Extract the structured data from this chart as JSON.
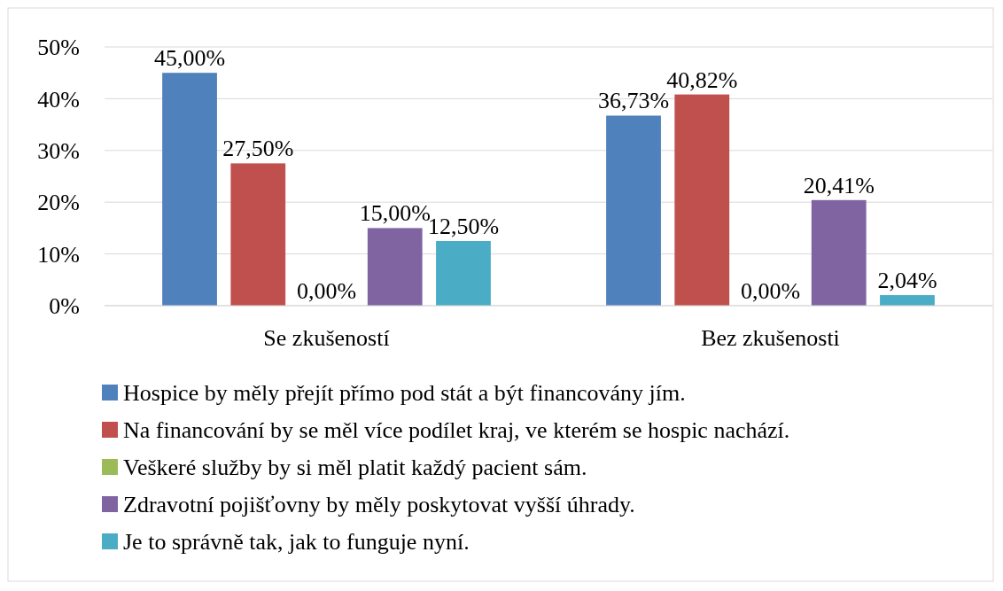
{
  "chart_data": {
    "type": "bar",
    "categories": [
      "Se zkušeností",
      "Bez zkušenosti"
    ],
    "series": [
      {
        "name": "Hospice by měly přejít přímo pod stát a být financovány jím.",
        "color": "#4f81bd",
        "values": [
          45.0,
          36.73
        ],
        "value_labels": [
          "45,00%",
          "36,73%"
        ]
      },
      {
        "name": "Na financování by se měl více podílet kraj, ve kterém se hospic nachází.",
        "color": "#c0504d",
        "values": [
          27.5,
          40.82
        ],
        "value_labels": [
          "27,50%",
          "40,82%"
        ]
      },
      {
        "name": "Veškeré služby by si měl platit každý pacient sám.",
        "color": "#9bbb59",
        "values": [
          0.0,
          0.0
        ],
        "value_labels": [
          "0,00%",
          "0,00%"
        ]
      },
      {
        "name": "Zdravotní pojišťovny by měly poskytovat vyšší úhrady.",
        "color": "#8064a2",
        "values": [
          15.0,
          20.41
        ],
        "value_labels": [
          "15,00%",
          "20,41%"
        ]
      },
      {
        "name": "Je to správně tak, jak to funguje nyní.",
        "color": "#4bacc6",
        "values": [
          12.5,
          2.04
        ],
        "value_labels": [
          "12,50%",
          "2,04%"
        ]
      }
    ],
    "ylim": [
      0,
      50
    ],
    "yticks": [
      {
        "value": 0,
        "label": "0%"
      },
      {
        "value": 10,
        "label": "10%"
      },
      {
        "value": 20,
        "label": "20%"
      },
      {
        "value": 30,
        "label": "30%"
      },
      {
        "value": 40,
        "label": "40%"
      },
      {
        "value": 50,
        "label": "50%"
      }
    ],
    "grid": "y",
    "legend": "bottom"
  }
}
